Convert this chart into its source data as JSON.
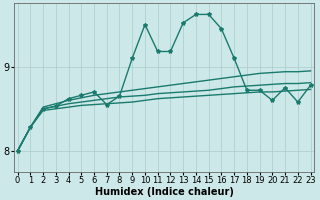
{
  "xlabel": "Humidex (Indice chaleur)",
  "ylabel": "",
  "bg_color": "#cce8e8",
  "grid_color": "#aacccc",
  "line_color": "#1a7a6e",
  "x_ticks": [
    0,
    1,
    2,
    3,
    4,
    5,
    6,
    7,
    8,
    9,
    10,
    11,
    12,
    13,
    14,
    15,
    16,
    17,
    18,
    19,
    20,
    21,
    22,
    23
  ],
  "y_ticks": [
    8,
    9
  ],
  "ylim": [
    7.75,
    9.75
  ],
  "xlim": [
    -0.3,
    23.3
  ],
  "series_smooth": [
    {
      "x": [
        0,
        1,
        2,
        3,
        4,
        5,
        6,
        7,
        8,
        9,
        10,
        11,
        12,
        13,
        14,
        15,
        16,
        17,
        18,
        19,
        20,
        21,
        22,
        23
      ],
      "y": [
        8.0,
        8.28,
        8.48,
        8.5,
        8.52,
        8.54,
        8.55,
        8.56,
        8.57,
        8.58,
        8.6,
        8.62,
        8.63,
        8.64,
        8.65,
        8.66,
        8.67,
        8.68,
        8.69,
        8.7,
        8.7,
        8.71,
        8.72,
        8.73
      ]
    },
    {
      "x": [
        0,
        1,
        2,
        3,
        4,
        5,
        6,
        7,
        8,
        9,
        10,
        11,
        12,
        13,
        14,
        15,
        16,
        17,
        18,
        19,
        20,
        21,
        22,
        23
      ],
      "y": [
        8.0,
        8.28,
        8.5,
        8.53,
        8.56,
        8.58,
        8.6,
        8.62,
        8.64,
        8.65,
        8.66,
        8.68,
        8.69,
        8.7,
        8.71,
        8.72,
        8.74,
        8.76,
        8.77,
        8.78,
        8.79,
        8.8,
        8.8,
        8.81
      ]
    },
    {
      "x": [
        0,
        1,
        2,
        3,
        4,
        5,
        6,
        7,
        8,
        9,
        10,
        11,
        12,
        13,
        14,
        15,
        16,
        17,
        18,
        19,
        20,
        21,
        22,
        23
      ],
      "y": [
        8.0,
        8.28,
        8.52,
        8.56,
        8.6,
        8.63,
        8.66,
        8.68,
        8.7,
        8.72,
        8.74,
        8.76,
        8.78,
        8.8,
        8.82,
        8.84,
        8.86,
        8.88,
        8.9,
        8.92,
        8.93,
        8.94,
        8.94,
        8.95
      ]
    }
  ],
  "series_spiky": {
    "x": [
      0,
      1,
      2,
      3,
      4,
      5,
      6,
      7,
      8,
      9,
      10,
      11,
      12,
      13,
      14,
      15,
      16,
      17,
      18,
      19,
      20,
      21,
      22,
      23
    ],
    "y": [
      8.0,
      8.28,
      8.5,
      8.53,
      8.62,
      8.66,
      8.7,
      8.55,
      8.65,
      9.1,
      9.5,
      9.18,
      9.18,
      9.52,
      9.62,
      9.62,
      9.45,
      9.1,
      8.72,
      8.72,
      8.6,
      8.75,
      8.58,
      8.78
    ]
  },
  "lw": 1.0,
  "marker_size": 3.0,
  "tick_fontsize": 6,
  "xlabel_fontsize": 7
}
